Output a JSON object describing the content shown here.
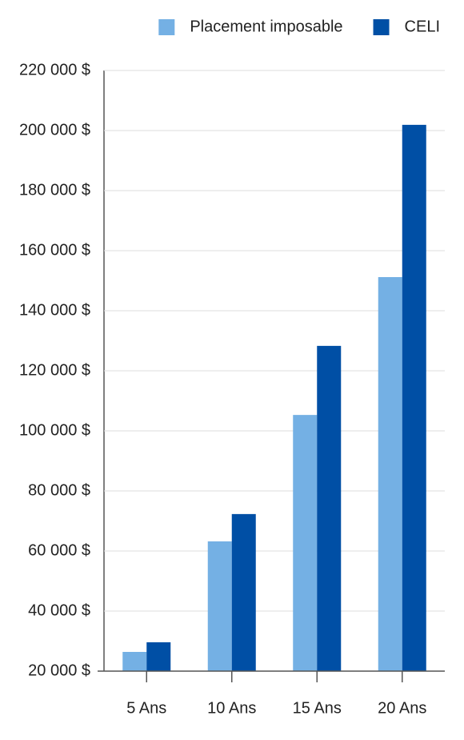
{
  "chart_data": {
    "type": "bar",
    "categories": [
      "5 Ans",
      "10 Ans",
      "15 Ans",
      "20 Ans"
    ],
    "series": [
      {
        "name": "Placement imposable",
        "color": "#74b0e4",
        "values": [
          26400,
          63200,
          105300,
          151200
        ]
      },
      {
        "name": "CELI",
        "color": "#004fa5",
        "values": [
          29600,
          72300,
          128300,
          201900
        ]
      }
    ],
    "ylim": [
      20000,
      220000
    ],
    "yticks": [
      {
        "value": 20000,
        "label": "20 000 $"
      },
      {
        "value": 40000,
        "label": "40 000 $"
      },
      {
        "value": 60000,
        "label": "60 000 $"
      },
      {
        "value": 80000,
        "label": "80 000 $"
      },
      {
        "value": 100000,
        "label": "100 000 $"
      },
      {
        "value": 120000,
        "label": "120 000 $"
      },
      {
        "value": 140000,
        "label": "140 000 $"
      },
      {
        "value": 160000,
        "label": "160 000 $"
      },
      {
        "value": 180000,
        "label": "180 000 $"
      },
      {
        "value": 200000,
        "label": "200 000 $"
      },
      {
        "value": 220000,
        "label": "220 000 $"
      }
    ],
    "grid": true,
    "legend": "top-right"
  }
}
